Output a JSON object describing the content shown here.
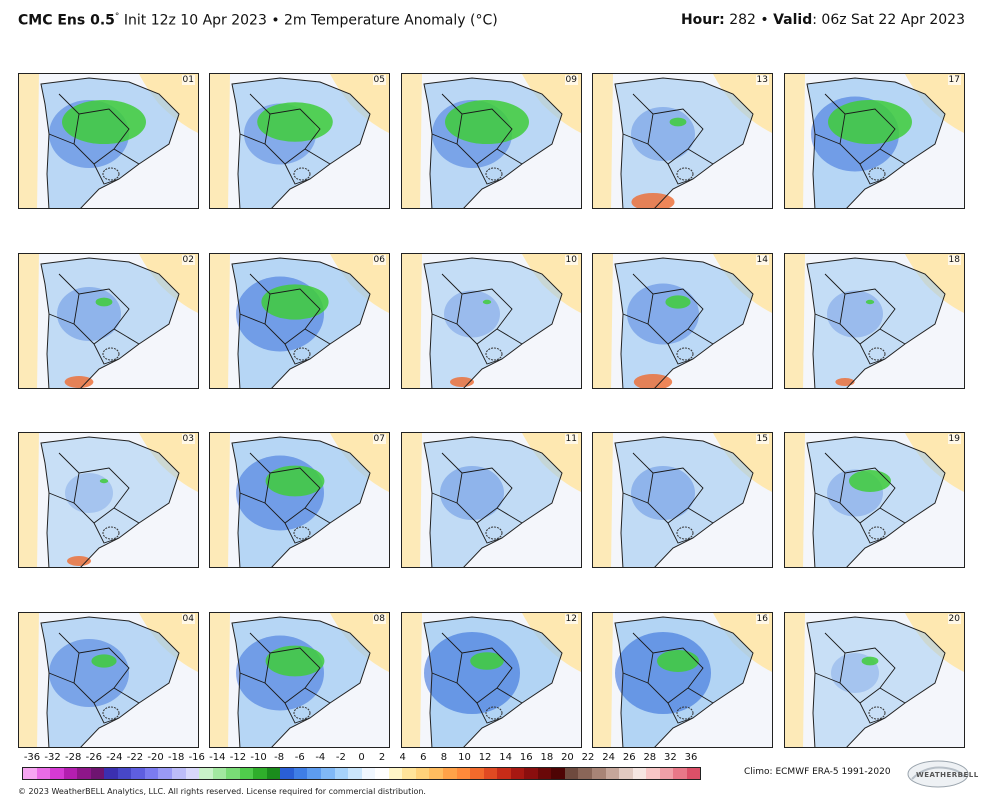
{
  "header": {
    "model_bold": "CMC Ens 0.5",
    "degree_sign": "°",
    "init_text": " Init 12z 10 Apr 2023 • 2m Temperature Anomaly (°C)",
    "hour_label": "Hour:",
    "hour_value": " 282 • ",
    "valid_label": "Valid",
    "valid_value": ": 06z Sat 22 Apr 2023"
  },
  "panels": [
    {
      "num": "01",
      "col": 0,
      "row": 0,
      "green": 1.0,
      "blue": 0.8,
      "red": 0.0
    },
    {
      "num": "05",
      "col": 1,
      "row": 0,
      "green": 0.9,
      "blue": 0.7,
      "red": 0.0
    },
    {
      "num": "09",
      "col": 2,
      "row": 0,
      "green": 1.0,
      "blue": 0.8,
      "red": 0.0
    },
    {
      "num": "13",
      "col": 3,
      "row": 0,
      "green": 0.2,
      "blue": 0.6,
      "red": 0.9
    },
    {
      "num": "17",
      "col": 4,
      "row": 0,
      "green": 1.0,
      "blue": 0.9,
      "red": 0.0
    },
    {
      "num": "02",
      "col": 0,
      "row": 1,
      "green": 0.2,
      "blue": 0.6,
      "red": 0.6
    },
    {
      "num": "06",
      "col": 1,
      "row": 1,
      "green": 0.8,
      "blue": 0.9,
      "red": 0.0
    },
    {
      "num": "10",
      "col": 2,
      "row": 1,
      "green": 0.1,
      "blue": 0.5,
      "red": 0.5
    },
    {
      "num": "14",
      "col": 3,
      "row": 1,
      "green": 0.3,
      "blue": 0.7,
      "red": 0.8
    },
    {
      "num": "18",
      "col": 4,
      "row": 1,
      "green": 0.1,
      "blue": 0.5,
      "red": 0.4
    },
    {
      "num": "03",
      "col": 0,
      "row": 2,
      "green": 0.1,
      "blue": 0.4,
      "red": 0.5
    },
    {
      "num": "07",
      "col": 1,
      "row": 2,
      "green": 0.7,
      "blue": 0.9,
      "red": 0.0
    },
    {
      "num": "11",
      "col": 2,
      "row": 2,
      "green": 0.0,
      "blue": 0.6,
      "red": 0.0
    },
    {
      "num": "15",
      "col": 3,
      "row": 2,
      "green": 0.0,
      "blue": 0.6,
      "red": 0.0
    },
    {
      "num": "19",
      "col": 4,
      "row": 2,
      "green": 0.5,
      "blue": 0.5,
      "red": 0.0
    },
    {
      "num": "04",
      "col": 0,
      "row": 3,
      "green": 0.3,
      "blue": 0.8,
      "red": 0.0
    },
    {
      "num": "08",
      "col": 1,
      "row": 3,
      "green": 0.7,
      "blue": 0.9,
      "red": 0.0
    },
    {
      "num": "12",
      "col": 2,
      "row": 3,
      "green": 0.4,
      "blue": 1.0,
      "red": 0.0
    },
    {
      "num": "16",
      "col": 3,
      "row": 3,
      "green": 0.5,
      "blue": 1.0,
      "red": 0.0
    },
    {
      "num": "20",
      "col": 4,
      "row": 3,
      "green": 0.2,
      "blue": 0.4,
      "red": 0.0
    }
  ],
  "colorbar": {
    "tick_labels": [
      "-36",
      "-32",
      "-28",
      "-26",
      "-24",
      "-22",
      "-20",
      "-18",
      "-16",
      "-14",
      "-12",
      "-10",
      "-8",
      "-6",
      "-4",
      "-2",
      "0",
      "2",
      "4",
      "6",
      "8",
      "10",
      "12",
      "14",
      "16",
      "18",
      "20",
      "22",
      "24",
      "26",
      "28",
      "32",
      "36"
    ],
    "colors": [
      "#f7a6f2",
      "#ea6ce6",
      "#d63ad4",
      "#b41eb0",
      "#8e1689",
      "#6e1470",
      "#3b2fb0",
      "#4747c8",
      "#5e5ee0",
      "#7b7bf0",
      "#9a9af5",
      "#bcbcf8",
      "#d8d8fb",
      "#c9f2c9",
      "#a2e8a0",
      "#79dc76",
      "#50cc4c",
      "#2fae2b",
      "#1a8c1c",
      "#2a5fd6",
      "#3f7ee6",
      "#5d9cf0",
      "#80b8f6",
      "#a6d2fa",
      "#cbe6fc",
      "#f0f7ff",
      "#ffffff",
      "#fff6c8",
      "#ffe49a",
      "#ffd27a",
      "#ffbd60",
      "#ffa248",
      "#ff8a3a",
      "#f26a2c",
      "#e04a22",
      "#c82c18",
      "#a81812",
      "#8a0e0e",
      "#6a0808",
      "#4e0404",
      "#6e4a3e",
      "#8a6658",
      "#a88476",
      "#c6a69a",
      "#e2cac2",
      "#f6e6e2",
      "#f8c6c6",
      "#f0a0a8",
      "#e87888",
      "#dc5068"
    ]
  },
  "footer": {
    "climo": "Climo: ECMWF ERA-5 1991-2020",
    "copyright": "© 2023 WeatherBELL Analytics, LLC. All rights reserved. License required for commercial distribution.",
    "logo_text": "WEATHERBELL"
  },
  "colors": {
    "land_bg": "#f7f3e8",
    "warm": "#ffe7a8",
    "blue_dark": "#2a64d8",
    "blue_light": "#9cc8f2",
    "green": "#3fcc3a",
    "red": "#ee6a30"
  }
}
